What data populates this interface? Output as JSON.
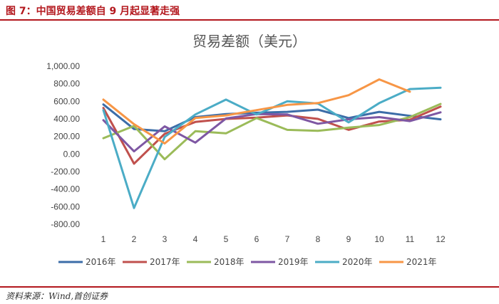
{
  "figure": {
    "title": "图 7：中国贸易差额自 9 月起显著走强",
    "source": "资料来源：Wind,首创证券"
  },
  "chart_data": {
    "type": "line",
    "title": "贸易差额（美元）",
    "xlabel": "",
    "ylabel": "",
    "x": [
      1,
      2,
      3,
      4,
      5,
      6,
      7,
      8,
      9,
      10,
      11,
      12
    ],
    "x_tick_labels": [
      "1",
      "2",
      "3",
      "4",
      "5",
      "6",
      "7",
      "8",
      "9",
      "10",
      "11",
      "12"
    ],
    "ylim": [
      -800,
      1000
    ],
    "y_ticks": [
      -800,
      -600,
      -400,
      -200,
      0,
      200,
      400,
      600,
      800,
      1000
    ],
    "y_tick_labels": [
      "-800.00",
      "-600.00",
      "-400.00",
      "-200.00",
      "0.00",
      "200.00",
      "400.00",
      "600.00",
      "800.00",
      "1,000.00"
    ],
    "grid": false,
    "legend_position": "bottom",
    "series": [
      {
        "name": "2016年",
        "color": "#3c6da8",
        "values": [
          565,
          285,
          260,
          420,
          455,
          470,
          480,
          505,
          410,
          480,
          435,
          395
        ]
      },
      {
        "name": "2017年",
        "color": "#c0504d",
        "values": [
          525,
          -110,
          230,
          365,
          400,
          415,
          440,
          400,
          275,
          370,
          390,
          540
        ]
      },
      {
        "name": "2018年",
        "color": "#9bbb59",
        "values": [
          180,
          320,
          -60,
          260,
          235,
          410,
          275,
          265,
          300,
          330,
          420,
          570
        ]
      },
      {
        "name": "2019年",
        "color": "#7e57a3",
        "values": [
          385,
          30,
          315,
          130,
          405,
          455,
          450,
          345,
          395,
          420,
          375,
          475
        ]
      },
      {
        "name": "2020年",
        "color": "#4bacc6",
        "values": [
          500,
          -615,
          195,
          450,
          620,
          450,
          600,
          575,
          360,
          580,
          740,
          755
        ]
      },
      {
        "name": "2021年",
        "color": "#f79646",
        "values": [
          620,
          340,
          120,
          410,
          440,
          500,
          560,
          580,
          670,
          850,
          710,
          null
        ]
      }
    ]
  }
}
